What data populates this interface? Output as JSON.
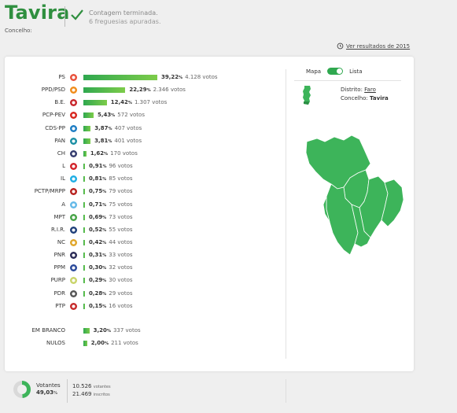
{
  "header": {
    "title": "Tavira",
    "subtitle": "Concelho:",
    "status": "Contagem terminada.",
    "status_detail": "6 freguesias apuradas."
  },
  "history_link": "Ver resultados de 2015",
  "parties": [
    {
      "name": "PS",
      "pct": "39,22",
      "votes": "4.128 votos",
      "share": 39.22
    },
    {
      "name": "PPD/PSD",
      "pct": "22,29",
      "votes": "2.346 votos",
      "share": 22.29
    },
    {
      "name": "B.E.",
      "pct": "12,42",
      "votes": "1.307 votos",
      "share": 12.42
    },
    {
      "name": "PCP-PEV",
      "pct": "5,43",
      "votes": "572 votos",
      "share": 5.43
    },
    {
      "name": "CDS-PP",
      "pct": "3,87",
      "votes": "407 votos",
      "share": 3.87
    },
    {
      "name": "PAN",
      "pct": "3,81",
      "votes": "401 votos",
      "share": 3.81
    },
    {
      "name": "CH",
      "pct": "1,62",
      "votes": "170 votos",
      "share": 1.62
    },
    {
      "name": "L",
      "pct": "0,91",
      "votes": "96 votos",
      "share": 0.91
    },
    {
      "name": "IL",
      "pct": "0,81",
      "votes": "85 votos",
      "share": 0.81
    },
    {
      "name": "PCTP/MRPP",
      "pct": "0,75",
      "votes": "79 votos",
      "share": 0.75
    },
    {
      "name": "A",
      "pct": "0,71",
      "votes": "75 votos",
      "share": 0.71
    },
    {
      "name": "MPT",
      "pct": "0,69",
      "votes": "73 votos",
      "share": 0.69
    },
    {
      "name": "R.I.R.",
      "pct": "0,52",
      "votes": "55 votos",
      "share": 0.52
    },
    {
      "name": "NC",
      "pct": "0,42",
      "votes": "44 votos",
      "share": 0.42
    },
    {
      "name": "PNR",
      "pct": "0,31",
      "votes": "33 votos",
      "share": 0.31
    },
    {
      "name": "PPM",
      "pct": "0,30",
      "votes": "32 votos",
      "share": 0.3
    },
    {
      "name": "PURP",
      "pct": "0,29",
      "votes": "30 votos",
      "share": 0.29
    },
    {
      "name": "PDR",
      "pct": "0,28",
      "votes": "29 votos",
      "share": 0.28
    },
    {
      "name": "PTP",
      "pct": "0,15",
      "votes": "16 votos",
      "share": 0.15
    }
  ],
  "extra": [
    {
      "name": "EM BRANCO",
      "pct": "3,20",
      "votes": "337 votos",
      "share": 3.2
    },
    {
      "name": "NULOS",
      "pct": "2,00",
      "votes": "211 votos",
      "share": 2.0
    }
  ],
  "pct_symbol": "%",
  "toggle": {
    "left": "Mapa",
    "right": "Lista"
  },
  "info": {
    "distrito_label": "Distrito:",
    "distrito_value": "Faro",
    "concelho_label": "Concelho:",
    "concelho_value": "Tavira"
  },
  "footer": {
    "votantes_label": "Votantes",
    "votantes_pct": "49,03",
    "votantes_share": 49.03,
    "votantes_count": "10.526",
    "votantes_suffix": "votantes",
    "inscritos_count": "21.469",
    "inscritos_suffix": "inscritos"
  },
  "colors": {
    "accent": "#2f8f3f",
    "bar_start": "#2fa84f",
    "bar_end": "#7dcc4a",
    "map": "#3db45a"
  }
}
